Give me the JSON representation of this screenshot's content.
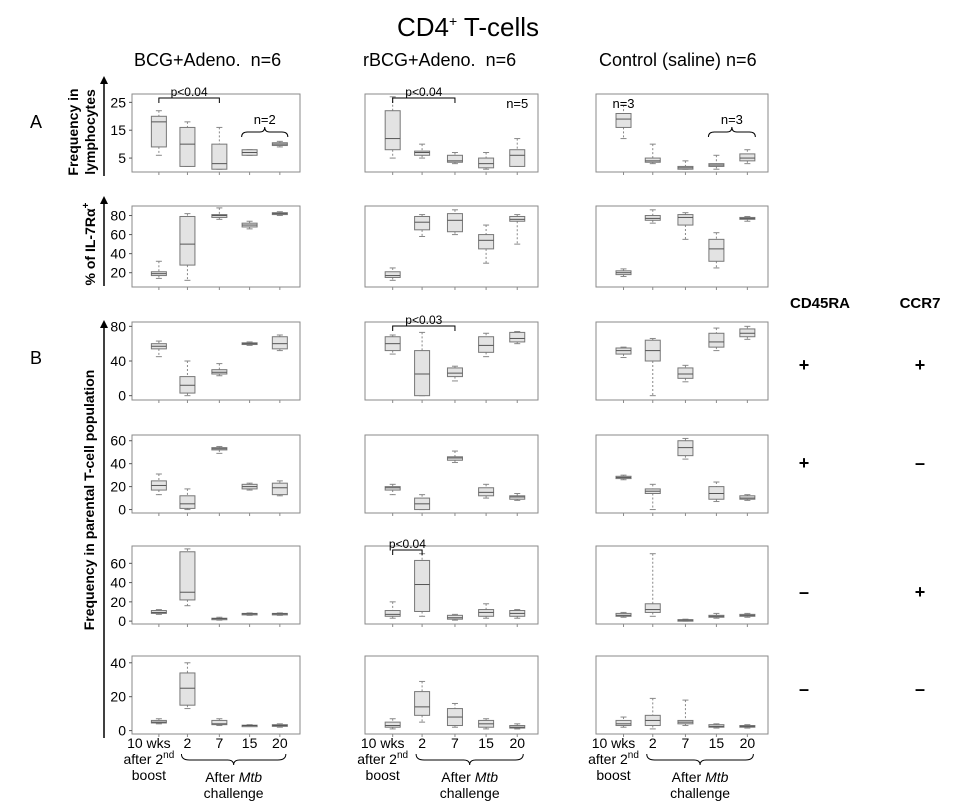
{
  "figure": {
    "title": "CD4",
    "title_sup": "+",
    "title_suffix": " T-cells",
    "group_titles": [
      "BCG+Adeno.  n=6",
      "rBCG+Adeno.  n=6",
      "Control (saline) n=6"
    ],
    "panel_labels": [
      "A",
      "B"
    ],
    "ylabels": {
      "freq_line1": "Frequency in",
      "freq_line2": "lymphocytes",
      "il7r": "% of IL-7Rα",
      "il7r_sup": "+",
      "parental": "Frequency in parental T-cell population"
    },
    "marker_headers": [
      "CD45RA",
      "CCR7"
    ],
    "marker_signs": [
      [
        "+",
        "+"
      ],
      [
        "+",
        "–"
      ],
      [
        "–",
        "+"
      ],
      [
        "–",
        "–"
      ]
    ],
    "x_labels": [
      "10 wks",
      "2",
      "7",
      "15",
      "20"
    ],
    "after_boost_lines": [
      "after 2",
      "boost"
    ],
    "after_boost_sup": "nd",
    "after_lines": [
      "After ",
      "Mtb",
      "challenge"
    ]
  },
  "chart_data": [
    {
      "type": "box",
      "row": "A-freq",
      "group": "BCG+Adeno.",
      "yticks": [
        5,
        15,
        25
      ],
      "ylim": [
        0,
        28
      ],
      "categories": [
        "10 wks",
        "2",
        "7",
        "15",
        "20"
      ],
      "boxes": [
        [
          6,
          9,
          18,
          20,
          22
        ],
        [
          2,
          2,
          10,
          16,
          18
        ],
        [
          1,
          1,
          3,
          10,
          16
        ],
        [
          6,
          6,
          7,
          8,
          8
        ],
        [
          9,
          9.5,
          10,
          10.5,
          11
        ]
      ],
      "annotations": [
        {
          "text": "p<0.04",
          "span": [
            0,
            2
          ]
        },
        {
          "text": "n=2",
          "span": [
            3,
            4
          ],
          "brace": true
        }
      ]
    },
    {
      "type": "box",
      "row": "A-freq",
      "group": "rBCG+Adeno.",
      "yticks": [],
      "ylim": [
        0,
        28
      ],
      "categories": [
        "10 wks",
        "2",
        "7",
        "15",
        "20"
      ],
      "boxes": [
        [
          5,
          8,
          12,
          22,
          27
        ],
        [
          5,
          6,
          7,
          7.5,
          10
        ],
        [
          3,
          3.5,
          4,
          6,
          7
        ],
        [
          1,
          1.5,
          3,
          5,
          7
        ],
        [
          2,
          2,
          6,
          8,
          12
        ]
      ],
      "annotations": [
        {
          "text": "p<0.04",
          "span": [
            0,
            2
          ]
        },
        {
          "text": "n=5",
          "pos": 4
        }
      ]
    },
    {
      "type": "box",
      "row": "A-freq",
      "group": "Control (saline)",
      "yticks": [],
      "ylim": [
        0,
        28
      ],
      "categories": [
        "10 wks",
        "2",
        "7",
        "15",
        "20"
      ],
      "boxes": [
        [
          12,
          16,
          19,
          21,
          24
        ],
        [
          3,
          3.5,
          4,
          5,
          10
        ],
        [
          1,
          1,
          1.5,
          2,
          4
        ],
        [
          1,
          2,
          2.5,
          3,
          6
        ],
        [
          3,
          4,
          5,
          6.5,
          8
        ]
      ],
      "annotations": [
        {
          "text": "n=3",
          "pos": 0
        },
        {
          "text": "n=3",
          "span": [
            3,
            4
          ],
          "brace": true
        }
      ]
    },
    {
      "type": "box",
      "row": "A-il7r",
      "group": "BCG+Adeno.",
      "yticks": [
        20,
        40,
        60,
        80
      ],
      "ylim": [
        5,
        90
      ],
      "categories": [
        "10 wks",
        "2",
        "7",
        "15",
        "20"
      ],
      "boxes": [
        [
          14,
          17,
          19,
          21,
          32
        ],
        [
          12,
          28,
          50,
          79,
          82
        ],
        [
          76,
          78,
          80,
          81,
          88
        ],
        [
          66,
          68,
          70,
          72,
          74
        ],
        [
          80,
          81,
          82,
          83,
          84
        ]
      ],
      "annotations": []
    },
    {
      "type": "box",
      "row": "A-il7r",
      "group": "rBCG+Adeno.",
      "yticks": [],
      "ylim": [
        5,
        90
      ],
      "categories": [
        "10 wks",
        "2",
        "7",
        "15",
        "20"
      ],
      "boxes": [
        [
          12,
          15,
          17,
          21,
          25
        ],
        [
          58,
          65,
          73,
          79,
          81
        ],
        [
          60,
          63,
          75,
          82,
          86
        ],
        [
          30,
          45,
          54,
          60,
          70
        ],
        [
          50,
          74,
          76,
          79,
          81
        ]
      ],
      "annotations": []
    },
    {
      "type": "box",
      "row": "A-il7r",
      "group": "Control (saline)",
      "yticks": [],
      "ylim": [
        5,
        90
      ],
      "categories": [
        "10 wks",
        "2",
        "7",
        "15",
        "20"
      ],
      "boxes": [
        [
          16,
          18,
          20,
          22,
          24
        ],
        [
          72,
          75,
          77,
          80,
          86
        ],
        [
          55,
          70,
          78,
          81,
          83
        ],
        [
          25,
          32,
          45,
          55,
          62
        ],
        [
          74,
          76,
          77,
          78,
          79
        ]
      ],
      "annotations": []
    },
    {
      "type": "box",
      "row": "B-1",
      "group": "BCG+Adeno.",
      "yticks": [
        0,
        40,
        80
      ],
      "ylim": [
        -5,
        85
      ],
      "categories": [
        "10 wks",
        "2",
        "7",
        "15",
        "20"
      ],
      "boxes": [
        [
          45,
          54,
          57,
          60,
          63
        ],
        [
          0,
          3,
          12,
          22,
          40
        ],
        [
          23,
          25,
          27,
          30,
          37
        ],
        [
          58,
          59,
          60,
          61,
          62
        ],
        [
          52,
          54,
          60,
          68,
          70
        ]
      ],
      "annotations": []
    },
    {
      "type": "box",
      "row": "B-1",
      "group": "rBCG+Adeno.",
      "yticks": [],
      "ylim": [
        -5,
        85
      ],
      "categories": [
        "10 wks",
        "2",
        "7",
        "15",
        "20"
      ],
      "boxes": [
        [
          48,
          52,
          60,
          68,
          70
        ],
        [
          0,
          0,
          25,
          52,
          73
        ],
        [
          17,
          22,
          26,
          32,
          34
        ],
        [
          45,
          50,
          58,
          68,
          72
        ],
        [
          60,
          62,
          66,
          73,
          74
        ]
      ],
      "annotations": [
        {
          "text": "p<0.03",
          "span": [
            0,
            2
          ]
        }
      ]
    },
    {
      "type": "box",
      "row": "B-1",
      "group": "Control (saline)",
      "yticks": [],
      "ylim": [
        -5,
        85
      ],
      "categories": [
        "10 wks",
        "2",
        "7",
        "15",
        "20"
      ],
      "boxes": [
        [
          44,
          48,
          52,
          55,
          56
        ],
        [
          0,
          40,
          52,
          64,
          66
        ],
        [
          16,
          20,
          25,
          32,
          35
        ],
        [
          52,
          56,
          62,
          72,
          78
        ],
        [
          65,
          68,
          72,
          77,
          80
        ]
      ],
      "annotations": []
    },
    {
      "type": "box",
      "row": "B-2",
      "group": "BCG+Adeno.",
      "yticks": [
        0,
        20,
        40,
        60
      ],
      "ylim": [
        -3,
        65
      ],
      "categories": [
        "10 wks",
        "2",
        "7",
        "15",
        "20"
      ],
      "boxes": [
        [
          13,
          17,
          21,
          25,
          31
        ],
        [
          0,
          1,
          5,
          12,
          18
        ],
        [
          49,
          52,
          53,
          54,
          55
        ],
        [
          17,
          18,
          20,
          22,
          23
        ],
        [
          12,
          13,
          19,
          23,
          25
        ]
      ],
      "annotations": []
    },
    {
      "type": "box",
      "row": "B-2",
      "group": "rBCG+Adeno.",
      "yticks": [],
      "ylim": [
        -3,
        65
      ],
      "categories": [
        "10 wks",
        "2",
        "7",
        "15",
        "20"
      ],
      "boxes": [
        [
          13,
          17,
          19,
          20,
          22
        ],
        [
          0,
          0,
          5,
          10,
          13
        ],
        [
          41,
          43,
          45,
          46,
          51
        ],
        [
          10,
          12,
          15,
          19,
          22
        ],
        [
          8,
          9,
          11,
          12,
          14
        ]
      ],
      "annotations": []
    },
    {
      "type": "box",
      "row": "B-2",
      "group": "Control (saline)",
      "yticks": [],
      "ylim": [
        -3,
        65
      ],
      "categories": [
        "10 wks",
        "2",
        "7",
        "15",
        "20"
      ],
      "boxes": [
        [
          26,
          27,
          28,
          29,
          30
        ],
        [
          0,
          14,
          16,
          18,
          22
        ],
        [
          44,
          47,
          54,
          60,
          62
        ],
        [
          7,
          9,
          14,
          20,
          24
        ],
        [
          8,
          9,
          10,
          12,
          13
        ]
      ],
      "annotations": []
    },
    {
      "type": "box",
      "row": "B-3",
      "group": "BCG+Adeno.",
      "yticks": [
        0,
        20,
        40,
        60
      ],
      "ylim": [
        -3,
        78
      ],
      "categories": [
        "10 wks",
        "2",
        "7",
        "15",
        "20"
      ],
      "boxes": [
        [
          7,
          8,
          9,
          11,
          12
        ],
        [
          16,
          22,
          30,
          72,
          75
        ],
        [
          1,
          2,
          2.5,
          3,
          4
        ],
        [
          6,
          7,
          7.5,
          8,
          8.5
        ],
        [
          6,
          7,
          7.5,
          8,
          8.5
        ]
      ],
      "annotations": []
    },
    {
      "type": "box",
      "row": "B-3",
      "group": "rBCG+Adeno.",
      "yticks": [],
      "ylim": [
        -3,
        78
      ],
      "categories": [
        "10 wks",
        "2",
        "7",
        "15",
        "20"
      ],
      "boxes": [
        [
          3,
          5,
          7,
          11,
          20
        ],
        [
          5,
          10,
          38,
          63,
          70
        ],
        [
          1,
          2,
          3.5,
          6,
          7
        ],
        [
          3,
          5,
          9,
          12,
          18
        ],
        [
          3,
          5,
          8,
          11,
          12
        ]
      ],
      "annotations": [
        {
          "text": "p<0.04",
          "span": [
            0,
            1
          ]
        }
      ]
    },
    {
      "type": "box",
      "row": "B-3",
      "group": "Control (saline)",
      "yticks": [],
      "ylim": [
        -3,
        78
      ],
      "categories": [
        "10 wks",
        "2",
        "7",
        "15",
        "20"
      ],
      "boxes": [
        [
          4,
          5,
          6,
          8,
          9
        ],
        [
          5,
          9,
          12,
          18,
          70
        ],
        [
          0,
          0.5,
          1,
          1.5,
          2
        ],
        [
          3,
          4,
          5,
          6,
          8
        ],
        [
          4,
          5,
          6,
          7,
          8
        ]
      ],
      "annotations": []
    },
    {
      "type": "box",
      "row": "B-4",
      "group": "BCG+Adeno.",
      "yticks": [
        0,
        20,
        40
      ],
      "ylim": [
        -2,
        44
      ],
      "categories": [
        "10 wks",
        "2",
        "7",
        "15",
        "20"
      ],
      "boxes": [
        [
          4,
          4.5,
          5,
          6,
          7
        ],
        [
          13,
          15,
          25,
          34,
          40
        ],
        [
          3,
          3.5,
          4,
          6,
          7
        ],
        [
          2.5,
          2.8,
          3,
          3.2,
          3.5
        ],
        [
          2,
          2.5,
          3,
          3.5,
          4
        ]
      ],
      "annotations": []
    },
    {
      "type": "box",
      "row": "B-4",
      "group": "rBCG+Adeno.",
      "yticks": [],
      "ylim": [
        -2,
        44
      ],
      "categories": [
        "10 wks",
        "2",
        "7",
        "15",
        "20"
      ],
      "boxes": [
        [
          1,
          2,
          3,
          5,
          7
        ],
        [
          5,
          9,
          14,
          23,
          29
        ],
        [
          2,
          3,
          8,
          13,
          16
        ],
        [
          1,
          2,
          4,
          6,
          7
        ],
        [
          1,
          1.5,
          2,
          3,
          4
        ]
      ],
      "annotations": []
    },
    {
      "type": "box",
      "row": "B-4",
      "group": "Control (saline)",
      "yticks": [],
      "ylim": [
        -2,
        44
      ],
      "categories": [
        "10 wks",
        "2",
        "7",
        "15",
        "20"
      ],
      "boxes": [
        [
          2,
          3,
          4,
          6,
          8
        ],
        [
          1,
          3,
          6,
          9,
          19
        ],
        [
          3,
          4,
          5,
          6,
          18
        ],
        [
          1.5,
          2,
          2.5,
          3.5,
          4
        ],
        [
          1.5,
          2,
          2.5,
          3,
          3.5
        ]
      ],
      "annotations": []
    }
  ]
}
